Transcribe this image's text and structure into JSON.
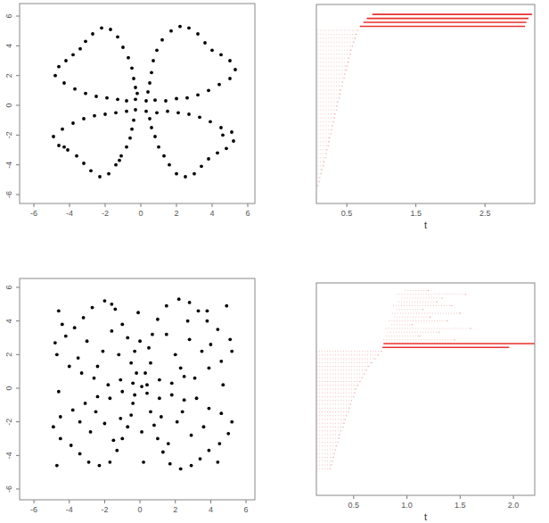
{
  "chart_data": [
    {
      "type": "scatter",
      "color": "#000000",
      "marker": "circle",
      "xlim": [
        -6.8,
        6.4
      ],
      "ylim": [
        -6.6,
        6.84
      ],
      "xticks": [
        -6,
        -4,
        -2,
        0,
        2,
        4,
        6
      ],
      "yticks": [
        -6,
        -4,
        -2,
        0,
        2,
        4,
        6
      ],
      "x": [
        0.3,
        0.8,
        1.4,
        2.0,
        2.6,
        3.2,
        3.8,
        4.4,
        5.0,
        5.3,
        5.0,
        4.5,
        4.0,
        3.6,
        3.2,
        2.7,
        2.2,
        1.7,
        1.2,
        0.9,
        0.7,
        0.6,
        0.5,
        0.4,
        -0.3,
        -0.8,
        -1.3,
        -1.9,
        -2.5,
        -3.1,
        -3.7,
        -4.3,
        -4.8,
        -4.6,
        -4.2,
        -3.8,
        -3.4,
        -3.1,
        -2.7,
        -2.2,
        -1.7,
        -1.3,
        -1.0,
        -0.7,
        -0.5,
        -0.4,
        -0.3,
        -0.2,
        -0.3,
        -0.8,
        -1.4,
        -2.0,
        -2.6,
        -3.2,
        -3.8,
        -4.4,
        -4.9,
        -4.6,
        -4.1,
        -3.6,
        -3.2,
        -2.8,
        -2.3,
        -1.8,
        -1.4,
        -1.1,
        -0.8,
        -0.6,
        -0.5,
        -0.4,
        -1.2,
        -4.3,
        0.3,
        0.9,
        1.5,
        2.1,
        2.7,
        3.3,
        3.9,
        4.5,
        5.1,
        5.2,
        4.8,
        4.3,
        3.8,
        3.4,
        3.0,
        2.5,
        2.0,
        1.6,
        1.3,
        1.0,
        0.8,
        0.6,
        0.5,
        4.6
      ],
      "y": [
        0.3,
        0.35,
        0.3,
        0.45,
        0.5,
        0.7,
        1.0,
        1.4,
        1.8,
        2.4,
        3.0,
        3.4,
        3.7,
        4.2,
        4.8,
        5.2,
        5.3,
        5.0,
        4.4,
        3.7,
        3.0,
        2.2,
        1.5,
        0.9,
        0.4,
        0.3,
        0.4,
        0.5,
        0.6,
        0.8,
        1.1,
        1.5,
        2.0,
        2.6,
        3.0,
        3.4,
        3.8,
        4.3,
        4.8,
        5.2,
        5.1,
        4.6,
        3.9,
        3.2,
        2.5,
        1.8,
        1.2,
        0.8,
        -0.3,
        -0.4,
        -0.5,
        -0.6,
        -0.7,
        -0.9,
        -1.2,
        -1.6,
        -2.1,
        -2.7,
        -3.0,
        -3.4,
        -3.9,
        -4.4,
        -4.8,
        -4.6,
        -4.0,
        -3.4,
        -2.8,
        -2.2,
        -1.6,
        -1.0,
        -3.7,
        -2.8,
        -0.4,
        -0.5,
        -0.4,
        -0.5,
        -0.6,
        -0.8,
        -1.1,
        -1.5,
        -1.8,
        -2.4,
        -2.9,
        -3.2,
        -3.6,
        -4.1,
        -4.6,
        -4.8,
        -4.6,
        -4.0,
        -3.4,
        -2.8,
        -2.1,
        -1.5,
        -0.9,
        -2.0
      ]
    },
    {
      "type": "barcode",
      "xlabel": "t",
      "xlim": [
        0.06,
        3.22
      ],
      "ylim": [
        -4,
        46
      ],
      "xticks": [
        0.5,
        1.5,
        2.5
      ],
      "tick_labels": "x",
      "series": [
        {
          "color": "#f3b2b2",
          "starts": [
            0,
            0,
            0,
            0,
            0,
            0,
            0,
            0,
            0,
            0,
            0,
            0,
            0,
            0,
            0,
            0,
            0,
            0,
            0,
            0,
            0,
            0,
            0,
            0,
            0,
            0,
            0,
            0,
            0,
            0,
            0,
            0,
            0,
            0,
            0,
            0,
            0,
            0,
            0,
            0
          ],
          "ends": [
            0.08,
            0.1,
            0.11,
            0.13,
            0.14,
            0.16,
            0.17,
            0.19,
            0.2,
            0.21,
            0.23,
            0.24,
            0.25,
            0.27,
            0.28,
            0.29,
            0.31,
            0.32,
            0.33,
            0.35,
            0.36,
            0.37,
            0.39,
            0.4,
            0.41,
            0.43,
            0.44,
            0.46,
            0.47,
            0.49,
            0.5,
            0.52,
            0.53,
            0.55,
            0.56,
            0.58,
            0.6,
            0.62,
            0.64,
            0.66
          ]
        },
        {
          "color": "#e8312c",
          "starts": [
            0.69,
            0.74,
            0.79,
            0.87
          ],
          "ends": [
            3.08,
            3.1,
            3.13,
            3.18
          ]
        }
      ]
    },
    {
      "type": "scatter",
      "color": "#000000",
      "marker": "circle",
      "xlim": [
        -6.81,
        6.5
      ],
      "ylim": [
        -6.64,
        6.53
      ],
      "xticks": [
        -6,
        -4,
        -2,
        0,
        2,
        4,
        6
      ],
      "yticks": [
        -6,
        -4,
        -2,
        0,
        2,
        4,
        6
      ],
      "x": [
        0.4,
        1.1,
        1.8,
        2.5,
        3.1,
        3.9,
        4.6,
        5.2,
        5.1,
        4.4,
        3.8,
        3.3,
        2.8,
        2.2,
        1.5,
        1.0,
        0.7,
        0.5,
        0.6,
        0.3,
        -0.4,
        -1.1,
        -1.8,
        -2.6,
        -3.3,
        -4.0,
        -4.7,
        -4.8,
        -4.2,
        -3.7,
        -3.2,
        -2.7,
        -2.0,
        -1.4,
        -1.0,
        -0.7,
        -0.3,
        -0.5,
        -0.2,
        -1.6,
        -0.3,
        -1.0,
        -1.7,
        -2.4,
        -3.1,
        -3.8,
        -4.5,
        -4.9,
        -4.5,
        -3.9,
        -3.4,
        -2.9,
        -2.3,
        -1.7,
        -1.3,
        -1.0,
        -0.7,
        -0.5,
        -0.4,
        -4.7,
        0.4,
        1.1,
        1.8,
        2.5,
        3.2,
        3.9,
        4.6,
        5.2,
        5.0,
        4.5,
        3.9,
        3.4,
        2.9,
        2.3,
        1.7,
        1.3,
        1.0,
        0.8,
        0.6,
        4.4,
        2.0,
        2.8,
        1.5,
        3.5,
        2.3,
        4.0,
        -2.1,
        -3.0,
        -1.6,
        -3.5,
        -2.4,
        -1.2,
        -2.0,
        -2.8,
        -1.5,
        -3.4,
        -2.5,
        -1.1,
        2.1,
        2.9,
        1.6,
        3.6,
        2.4,
        1.2,
        0.1,
        -0.1,
        0.2,
        4.7,
        -4.6,
        0,
        0.1,
        2.7,
        -4.6,
        4.9,
        -4.4,
        3.8
      ],
      "y": [
        0.2,
        0.5,
        0.3,
        0.7,
        0.6,
        1.2,
        1.6,
        2.2,
        2.9,
        3.5,
        4.0,
        4.6,
        5.1,
        5.3,
        4.9,
        4.1,
        3.2,
        2.4,
        1.5,
        0.9,
        0.3,
        0.5,
        0.2,
        0.6,
        0.9,
        1.3,
        2.0,
        2.7,
        3.1,
        3.6,
        4.2,
        4.8,
        5.2,
        4.7,
        3.8,
        3.0,
        2.2,
        1.5,
        0.9,
        5.0,
        -0.4,
        -0.2,
        -0.6,
        -0.5,
        -0.9,
        -1.3,
        -1.7,
        -2.3,
        -3.0,
        -3.4,
        -3.9,
        -4.4,
        -4.6,
        -4.4,
        -3.7,
        -3.0,
        -2.3,
        -1.6,
        -0.9,
        -4.6,
        -0.3,
        -0.6,
        -0.4,
        -0.7,
        -0.6,
        -1.2,
        -1.5,
        -2.0,
        -2.7,
        -3.3,
        -3.7,
        -4.2,
        -4.6,
        -4.8,
        -4.5,
        -3.8,
        -3.0,
        -2.2,
        -1.4,
        -4.4,
        2.0,
        2.9,
        3.2,
        2.2,
        1.2,
        2.6,
        2.2,
        2.8,
        3.4,
        1.8,
        1.3,
        2.0,
        -2.1,
        -2.6,
        -3.1,
        -2.0,
        -1.4,
        -1.8,
        -2.0,
        -2.8,
        -3.3,
        -2.3,
        -1.4,
        -1.7,
        0.1,
        4.5,
        -4.4,
        0.2,
        -0.2,
        2.8,
        -2.6,
        4.0,
        4.6,
        4.9,
        3.8,
        4.6
      ]
    },
    {
      "type": "barcode",
      "xlabel": "t",
      "xlim": [
        0.15,
        2.2
      ],
      "ylim": [
        -6.5,
        49.5
      ],
      "xticks": [
        0.5,
        {
          "value": 1,
          "label": "1.0"
        },
        1.5,
        {
          "value": 2,
          "label": "2.0"
        }
      ],
      "tick_labels": "x",
      "series": [
        {
          "color": "#f3b2b2",
          "starts": [
            0,
            0,
            0,
            0,
            0,
            0,
            0,
            0,
            0,
            0,
            0,
            0,
            0,
            0,
            0,
            0,
            0,
            0,
            0,
            0,
            0,
            0,
            0,
            0,
            0,
            0,
            0,
            0,
            0,
            0,
            0,
            0
          ],
          "ends": [
            0.28,
            0.29,
            0.3,
            0.31,
            0.32,
            0.33,
            0.34,
            0.35,
            0.36,
            0.37,
            0.38,
            0.4,
            0.41,
            0.42,
            0.43,
            0.45,
            0.46,
            0.47,
            0.48,
            0.5,
            0.51,
            0.52,
            0.54,
            0.56,
            0.58,
            0.6,
            0.62,
            0.64,
            0.67,
            0.7,
            0.73,
            0.76
          ]
        },
        {
          "color": "#e8312c",
          "starts": [
            0.77,
            0.78
          ],
          "ends": [
            1.96,
            2.22
          ]
        },
        {
          "color": "#f3b2b2",
          "starts": [
            0.78,
            0.8,
            0.82,
            0.8,
            0.85,
            0.83,
            0.88,
            0.86,
            0.9,
            0.87,
            0.92,
            0.95,
            0.9,
            0.98
          ],
          "ends": [
            1.45,
            1.12,
            1.3,
            1.6,
            1.05,
            1.38,
            1.22,
            1.5,
            1.15,
            1.42,
            1.28,
            1.33,
            1.55,
            1.2
          ]
        }
      ]
    }
  ]
}
